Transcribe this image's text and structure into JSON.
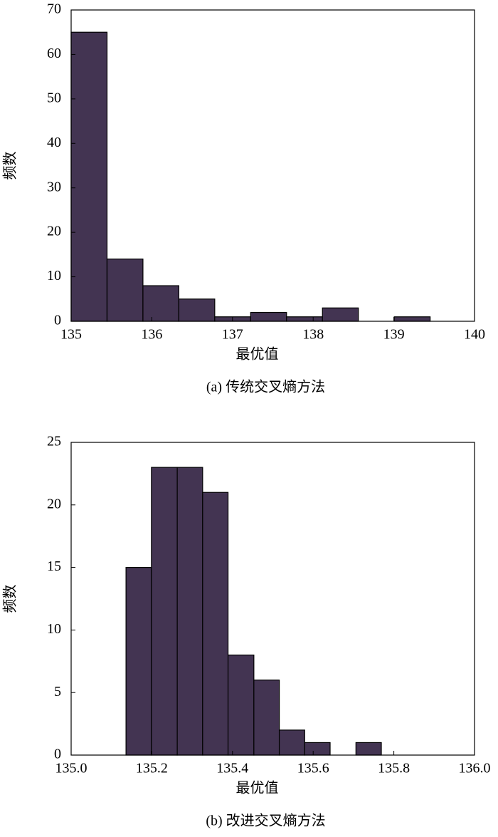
{
  "chart_data": [
    {
      "type": "histogram",
      "title": "(a) 传统交叉熵方法",
      "xlabel": "最优值",
      "ylabel": "频数",
      "bins": [
        135,
        135.445,
        135.89,
        136.335,
        136.78,
        137.225,
        137.67,
        138.115,
        138.56,
        139.005,
        139.45
      ],
      "values": [
        65,
        14,
        8,
        5,
        1,
        2,
        1,
        3,
        0,
        1
      ],
      "color": "#433452",
      "xlim": [
        135,
        140
      ],
      "ylim": [
        0,
        70
      ],
      "xticks": [
        135,
        136,
        137,
        138,
        139,
        140
      ],
      "yticks": [
        0,
        10,
        20,
        30,
        40,
        50,
        60,
        70
      ]
    },
    {
      "type": "histogram",
      "title": "(b) 改进交叉熵方法",
      "xlabel": "最优值",
      "ylabel": "频数",
      "bins": [
        135.136,
        135.199,
        135.263,
        135.326,
        135.389,
        135.453,
        135.516,
        135.579,
        135.642,
        135.706,
        135.769
      ],
      "values": [
        15,
        23,
        23,
        21,
        8,
        6,
        2,
        1,
        0,
        1
      ],
      "color": "#433452",
      "xlim": [
        135,
        136
      ],
      "ylim": [
        0,
        25
      ],
      "xticks": [
        {
          "value": 135,
          "label": "135.0"
        },
        135.2,
        135.4,
        135.6,
        135.8,
        {
          "value": 136,
          "label": "136.0"
        }
      ],
      "yticks": [
        0,
        5,
        10,
        15,
        20,
        25
      ]
    }
  ]
}
